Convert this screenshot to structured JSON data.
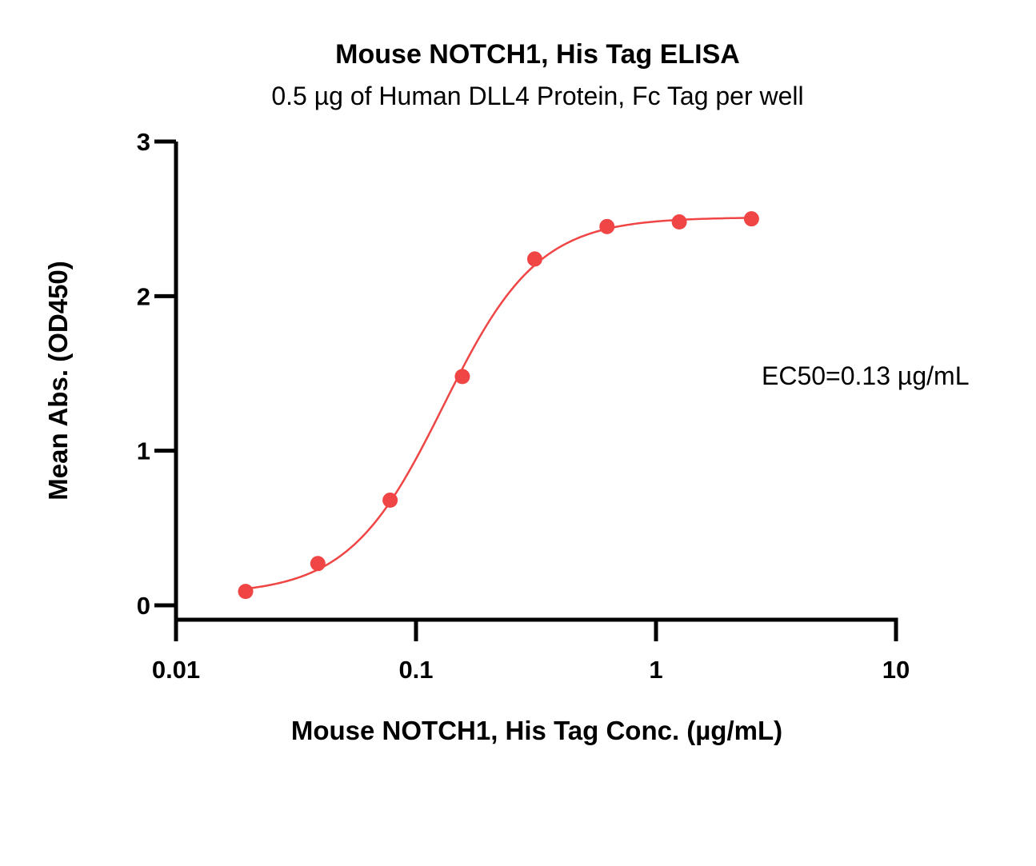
{
  "chart_data": {
    "type": "scatter",
    "title": "Mouse NOTCH1, His Tag ELISA",
    "subtitle": "0.5 µg of Human DLL4 Protein, Fc Tag per well",
    "xlabel": "Mouse NOTCH1, His Tag Conc. (µg/mL)",
    "ylabel": "Mean Abs. (OD450)",
    "x_scale": "log",
    "xlim": [
      0.01,
      10
    ],
    "ylim": [
      0,
      3
    ],
    "x_ticks": [
      {
        "value": 0.01,
        "label": "0.01"
      },
      {
        "value": 0.1,
        "label": "0.1"
      },
      {
        "value": 1,
        "label": "1"
      },
      {
        "value": 10,
        "label": "10"
      }
    ],
    "y_ticks": [
      {
        "value": 0,
        "label": "0"
      },
      {
        "value": 1,
        "label": "1"
      },
      {
        "value": 2,
        "label": "2"
      },
      {
        "value": 3,
        "label": "3"
      }
    ],
    "series": [
      {
        "color": "#f04545",
        "x": [
          0.0195,
          0.039,
          0.078,
          0.156,
          0.3125,
          0.625,
          1.25,
          2.5
        ],
        "y": [
          0.09,
          0.27,
          0.68,
          1.48,
          2.24,
          2.45,
          2.48,
          2.5
        ]
      }
    ],
    "fit_curve": {
      "type": "4PL",
      "bottom": 0.07,
      "top": 2.51,
      "ec50": 0.13,
      "hill": 2.2,
      "x_range": [
        0.0195,
        2.5
      ]
    },
    "annotation": "EC50=0.13 µg/mL",
    "grid": false,
    "legend": "none"
  }
}
